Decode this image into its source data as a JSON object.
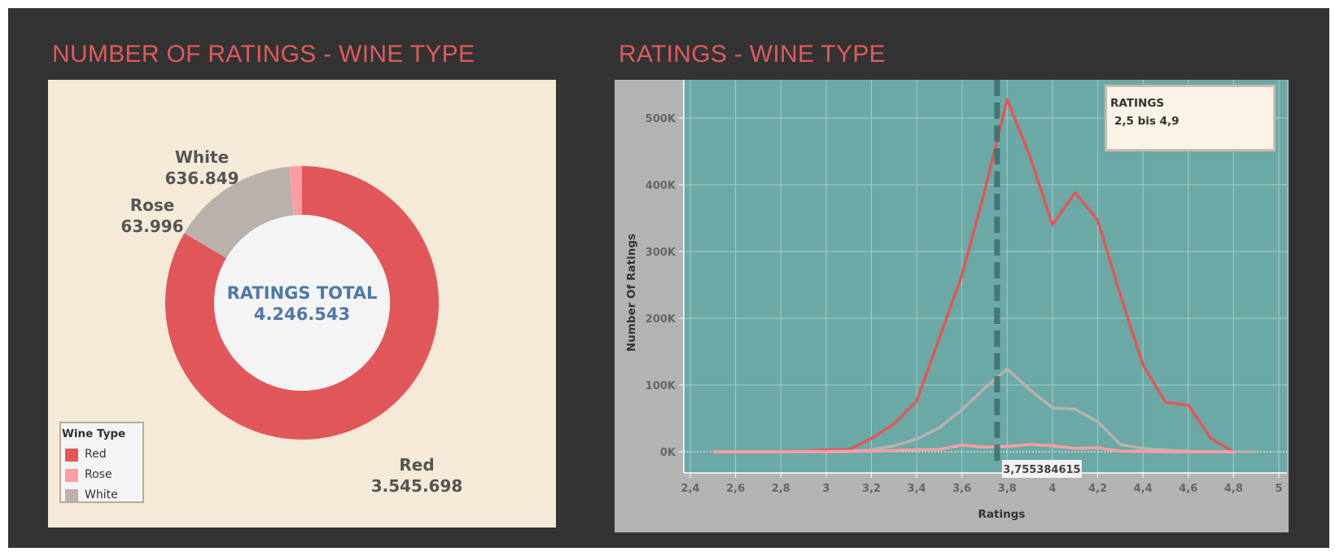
{
  "left_panel": {
    "title": "NUMBER OF RATINGS - WINE TYPE",
    "center_label": "RATINGS TOTAL",
    "center_value": "4.246.543",
    "legend_title": "Wine Type",
    "legend": [
      {
        "label": "Red",
        "color": "#e15759"
      },
      {
        "label": "Rose",
        "color": "#ff9da7"
      },
      {
        "label": "White",
        "color": "#bab0ac"
      }
    ]
  },
  "right_panel": {
    "title": "RATINGS - WINE TYPE",
    "filter_title": "RATINGS",
    "filter_value": "2,5 bis 4,9",
    "reference_label": "3,755384615"
  },
  "colors": {
    "background": "#333333",
    "title": "#e05a5d",
    "donut_panel": "#f5e9d8",
    "plot_area": "#6aa9a5",
    "axis_area": "#b3b3b3",
    "center_text": "#4e79a7"
  },
  "chart_data": [
    {
      "type": "pie",
      "donut": true,
      "categories": [
        "Red",
        "Rose",
        "White"
      ],
      "values": [
        3545698,
        63996,
        636849
      ],
      "value_labels": [
        "3.545.698",
        "63.996",
        "636.849"
      ],
      "colors": [
        "#e15759",
        "#ff9da7",
        "#bab0ac"
      ]
    },
    {
      "type": "line",
      "xlabel": "Ratings",
      "ylabel": "Number Of Ratings",
      "xlim": [
        2.4,
        5.0
      ],
      "ylim": [
        -10000,
        550000
      ],
      "x_ticks": [
        2.4,
        2.6,
        2.8,
        3.0,
        3.2,
        3.4,
        3.6,
        3.8,
        4.0,
        4.2,
        4.4,
        4.6,
        4.8,
        5.0
      ],
      "x_tick_labels": [
        "2,4",
        "2,6",
        "2,8",
        "3",
        "3,2",
        "3,4",
        "3,6",
        "3,8",
        "4",
        "4,2",
        "4,4",
        "4,6",
        "4,8",
        "5"
      ],
      "y_ticks": [
        0,
        100000,
        200000,
        300000,
        400000,
        500000
      ],
      "y_tick_labels": [
        "0K",
        "100K",
        "200K",
        "300K",
        "400K",
        "500K"
      ],
      "grid": true,
      "reference_line": 3.755384615,
      "series": [
        {
          "color": "#e15759",
          "points": [
            [
              2.5,
              0
            ],
            [
              2.6,
              0
            ],
            [
              2.7,
              0
            ],
            [
              2.8,
              500
            ],
            [
              2.9,
              1000
            ],
            [
              3.0,
              3000
            ],
            [
              3.1,
              3000
            ],
            [
              3.2,
              20000
            ],
            [
              3.3,
              42000
            ],
            [
              3.4,
              76000
            ],
            [
              3.5,
              170000
            ],
            [
              3.6,
              265000
            ],
            [
              3.7,
              390000
            ],
            [
              3.8,
              528000
            ],
            [
              3.9,
              443000
            ],
            [
              4.0,
              340000
            ],
            [
              4.1,
              388000
            ],
            [
              4.2,
              347000
            ],
            [
              4.3,
              235000
            ],
            [
              4.4,
              130000
            ],
            [
              4.5,
              74000
            ],
            [
              4.6,
              70000
            ],
            [
              4.7,
              20000
            ],
            [
              4.8,
              0
            ]
          ]
        },
        {
          "color": "#bab0ac",
          "points": [
            [
              2.5,
              0
            ],
            [
              2.6,
              0
            ],
            [
              2.7,
              0
            ],
            [
              2.8,
              0
            ],
            [
              2.9,
              500
            ],
            [
              3.0,
              500
            ],
            [
              3.1,
              1000
            ],
            [
              3.2,
              3000
            ],
            [
              3.3,
              9000
            ],
            [
              3.4,
              19000
            ],
            [
              3.5,
              36000
            ],
            [
              3.6,
              63000
            ],
            [
              3.7,
              95000
            ],
            [
              3.8,
              124000
            ],
            [
              3.9,
              93000
            ],
            [
              4.0,
              66000
            ],
            [
              4.1,
              64000
            ],
            [
              4.2,
              45000
            ],
            [
              4.3,
              11000
            ],
            [
              4.4,
              5000
            ],
            [
              4.5,
              3000
            ],
            [
              4.6,
              1000
            ],
            [
              4.7,
              500
            ],
            [
              4.8,
              0
            ],
            [
              4.9,
              0
            ]
          ]
        },
        {
          "color": "#ff9da7",
          "points": [
            [
              2.5,
              0
            ],
            [
              2.6,
              0
            ],
            [
              2.7,
              0
            ],
            [
              2.8,
              0
            ],
            [
              2.9,
              0
            ],
            [
              3.0,
              0
            ],
            [
              3.1,
              500
            ],
            [
              3.2,
              1000
            ],
            [
              3.3,
              2000
            ],
            [
              3.4,
              3000
            ],
            [
              3.5,
              3500
            ],
            [
              3.6,
              10000
            ],
            [
              3.7,
              7000
            ],
            [
              3.8,
              8000
            ],
            [
              3.9,
              11000
            ],
            [
              4.0,
              9000
            ],
            [
              4.1,
              5000
            ],
            [
              4.2,
              6000
            ],
            [
              4.3,
              1000
            ],
            [
              4.4,
              500
            ],
            [
              4.5,
              0
            ],
            [
              4.6,
              0
            ],
            [
              4.7,
              0
            ],
            [
              4.8,
              0
            ]
          ]
        }
      ]
    }
  ]
}
